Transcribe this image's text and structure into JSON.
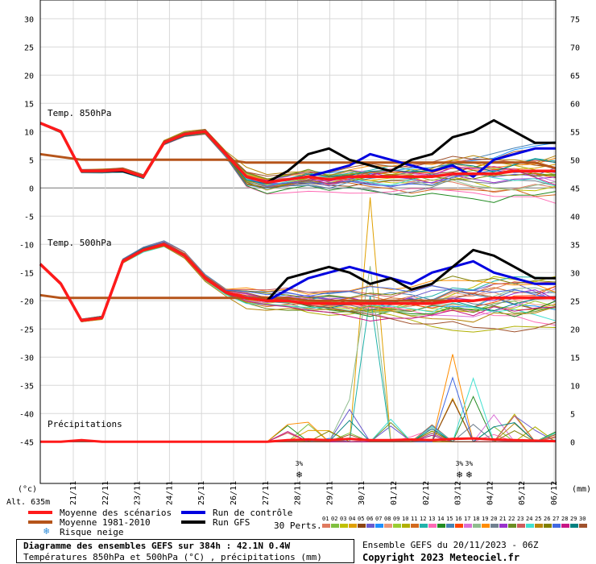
{
  "panels": {
    "t850_label": "Temp. 850hPa",
    "t500_label": "Temp. 500hPa",
    "precip_label": "Précipitations"
  },
  "axes": {
    "left_unit": "(°c)",
    "right_unit": "(mm)",
    "altitude": "Alt. 635m",
    "left_ticks": [
      30,
      25,
      20,
      15,
      10,
      5,
      0,
      -5,
      -10,
      -15,
      -20,
      -25,
      -30,
      -35,
      -40,
      -45
    ],
    "right_ticks": [
      75,
      70,
      65,
      60,
      55,
      50,
      45,
      40,
      35,
      30,
      25,
      20,
      15,
      10,
      5,
      0
    ],
    "date_labels": [
      "21/11",
      "22/11",
      "23/11",
      "24/11",
      "25/11",
      "26/11",
      "27/11",
      "28/11",
      "29/11",
      "30/11",
      "01/12",
      "02/12",
      "03/12",
      "04/12",
      "05/12",
      "06/12"
    ]
  },
  "snow_risk": [
    {
      "date_index": 7.8,
      "label": "3%"
    },
    {
      "date_index": 12.8,
      "label": "3%"
    },
    {
      "date_index": 13.1,
      "label": "3%"
    }
  ],
  "legend": {
    "mean_scenarios": "Moyenne des scénarios",
    "mean_1981_2010": "Moyenne 1981-2010",
    "snow_risk": "Risque neige",
    "control_run": "Run de contrôle",
    "gfs_run": "Run GFS",
    "perts_label": "30 Perts.",
    "pert_numbers": [
      "01",
      "02",
      "03",
      "04",
      "05",
      "06",
      "07",
      "08",
      "09",
      "10",
      "11",
      "12",
      "13",
      "14",
      "15",
      "16",
      "17",
      "18",
      "19",
      "20",
      "21",
      "22",
      "23",
      "24",
      "25",
      "26",
      "27",
      "28",
      "29",
      "30"
    ],
    "pert_colors": [
      "#e07a5f",
      "#7fbf3f",
      "#c0c000",
      "#e0a000",
      "#8b4513",
      "#6a5acd",
      "#1e90ff",
      "#e9967a",
      "#9acd32",
      "#b0b000",
      "#d2691e",
      "#20b2aa",
      "#ff69b4",
      "#228b22",
      "#4682b4",
      "#ff4500",
      "#da70d6",
      "#8fbc8f",
      "#ff8c00",
      "#708090",
      "#9932cc",
      "#6b8e23",
      "#cd5c5c",
      "#40e0d0",
      "#b8860b",
      "#808000",
      "#4169e1",
      "#c71585",
      "#008080",
      "#a0522d"
    ]
  },
  "footer": {
    "title": "Diagramme des ensembles GEFS sur 384h : 42.1N 0.4W",
    "subtitle": "Températures 850hPa et 500hPa (°C) , précipitations (mm)",
    "run_info": "Ensemble GEFS du 20/11/2023 - 06Z",
    "copyright": "Copyright 2023 Meteociel.fr"
  },
  "chart_data": {
    "type": "line",
    "x_start": "20/11/2023 06Z",
    "x_end": "06/12/2023",
    "ylim_left": [
      -45,
      30
    ],
    "ylim_right": [
      0,
      75
    ],
    "grid": true,
    "t850": {
      "mean_scenarios": [
        11.5,
        10,
        3,
        3,
        3.2,
        2,
        8,
        9.5,
        10,
        6,
        2,
        1,
        1.5,
        2,
        1.5,
        2,
        2,
        2,
        2,
        2,
        2.5,
        2.5,
        2.5,
        3,
        3,
        3
      ],
      "mean_1981_2010": [
        6,
        5.5,
        5,
        5,
        5,
        5,
        5,
        5,
        5,
        5,
        4.5,
        4.5,
        4.5,
        4.5,
        4.5,
        4.5,
        4.5,
        4.5,
        4.5,
        4.5,
        4.5,
        4.5,
        4.5,
        4.5,
        4.5,
        3.5
      ],
      "control_run": [
        11.5,
        10,
        3,
        3,
        3,
        2,
        8,
        9.5,
        10,
        6,
        2,
        1,
        1.5,
        2,
        3,
        4,
        6,
        5,
        4,
        3,
        4,
        2,
        5,
        6,
        7,
        7
      ],
      "gfs_run": [
        11.5,
        10,
        3,
        3,
        3,
        2,
        8,
        9.5,
        10,
        6,
        2,
        1,
        3,
        6,
        7,
        5,
        4,
        3,
        5,
        6,
        9,
        10,
        12,
        10,
        8,
        8
      ]
    },
    "t500": {
      "mean_scenarios": [
        -13.5,
        -17,
        -23.5,
        -23,
        -13,
        -11,
        -10,
        -12,
        -16,
        -18.5,
        -19.5,
        -20,
        -20,
        -20.5,
        -20.5,
        -20.5,
        -20.5,
        -20.5,
        -20.5,
        -20.5,
        -20,
        -20,
        -19.5,
        -19.5,
        -19.5,
        -19.5
      ],
      "mean_1981_2010": [
        -19,
        -19.5,
        -19.5,
        -19.5,
        -19.5,
        -19.5,
        -19.5,
        -19.5,
        -19.5,
        -19.5,
        -19.5,
        -19.5,
        -19.5,
        -20,
        -20,
        -20,
        -20,
        -20,
        -20,
        -20,
        -20,
        -20,
        -19.5,
        -19.5,
        -19.5,
        -19.5
      ],
      "control_run": [
        -13.5,
        -17,
        -23.5,
        -23,
        -13,
        -11,
        -10,
        -12,
        -16,
        -18.5,
        -19.5,
        -20,
        -18,
        -16,
        -15,
        -14,
        -15,
        -16,
        -17,
        -15,
        -14,
        -13,
        -15,
        -16,
        -17,
        -17
      ],
      "gfs_run": [
        -13.5,
        -17,
        -23.5,
        -23,
        -13,
        -11,
        -10,
        -12,
        -16,
        -18.5,
        -19.5,
        -20,
        -16,
        -15,
        -14,
        -15,
        -17,
        -16,
        -18,
        -17,
        -14,
        -11,
        -12,
        -14,
        -16,
        -16
      ]
    },
    "precip_mean_mm": [
      0,
      0,
      0.3,
      0,
      0,
      0,
      0,
      0,
      0,
      0,
      0,
      0,
      0.3,
      0.4,
      0.3,
      0.5,
      0.3,
      0.3,
      0.4,
      0.3,
      0.5,
      0.6,
      0.4,
      0.3,
      0.2,
      0.1
    ],
    "precip_max_mm": [
      0,
      0,
      1,
      0,
      0,
      0,
      0,
      0,
      0,
      0,
      0,
      0,
      4,
      4,
      2,
      8,
      45,
      4,
      2,
      3,
      16,
      12,
      6,
      5,
      3,
      2
    ]
  }
}
